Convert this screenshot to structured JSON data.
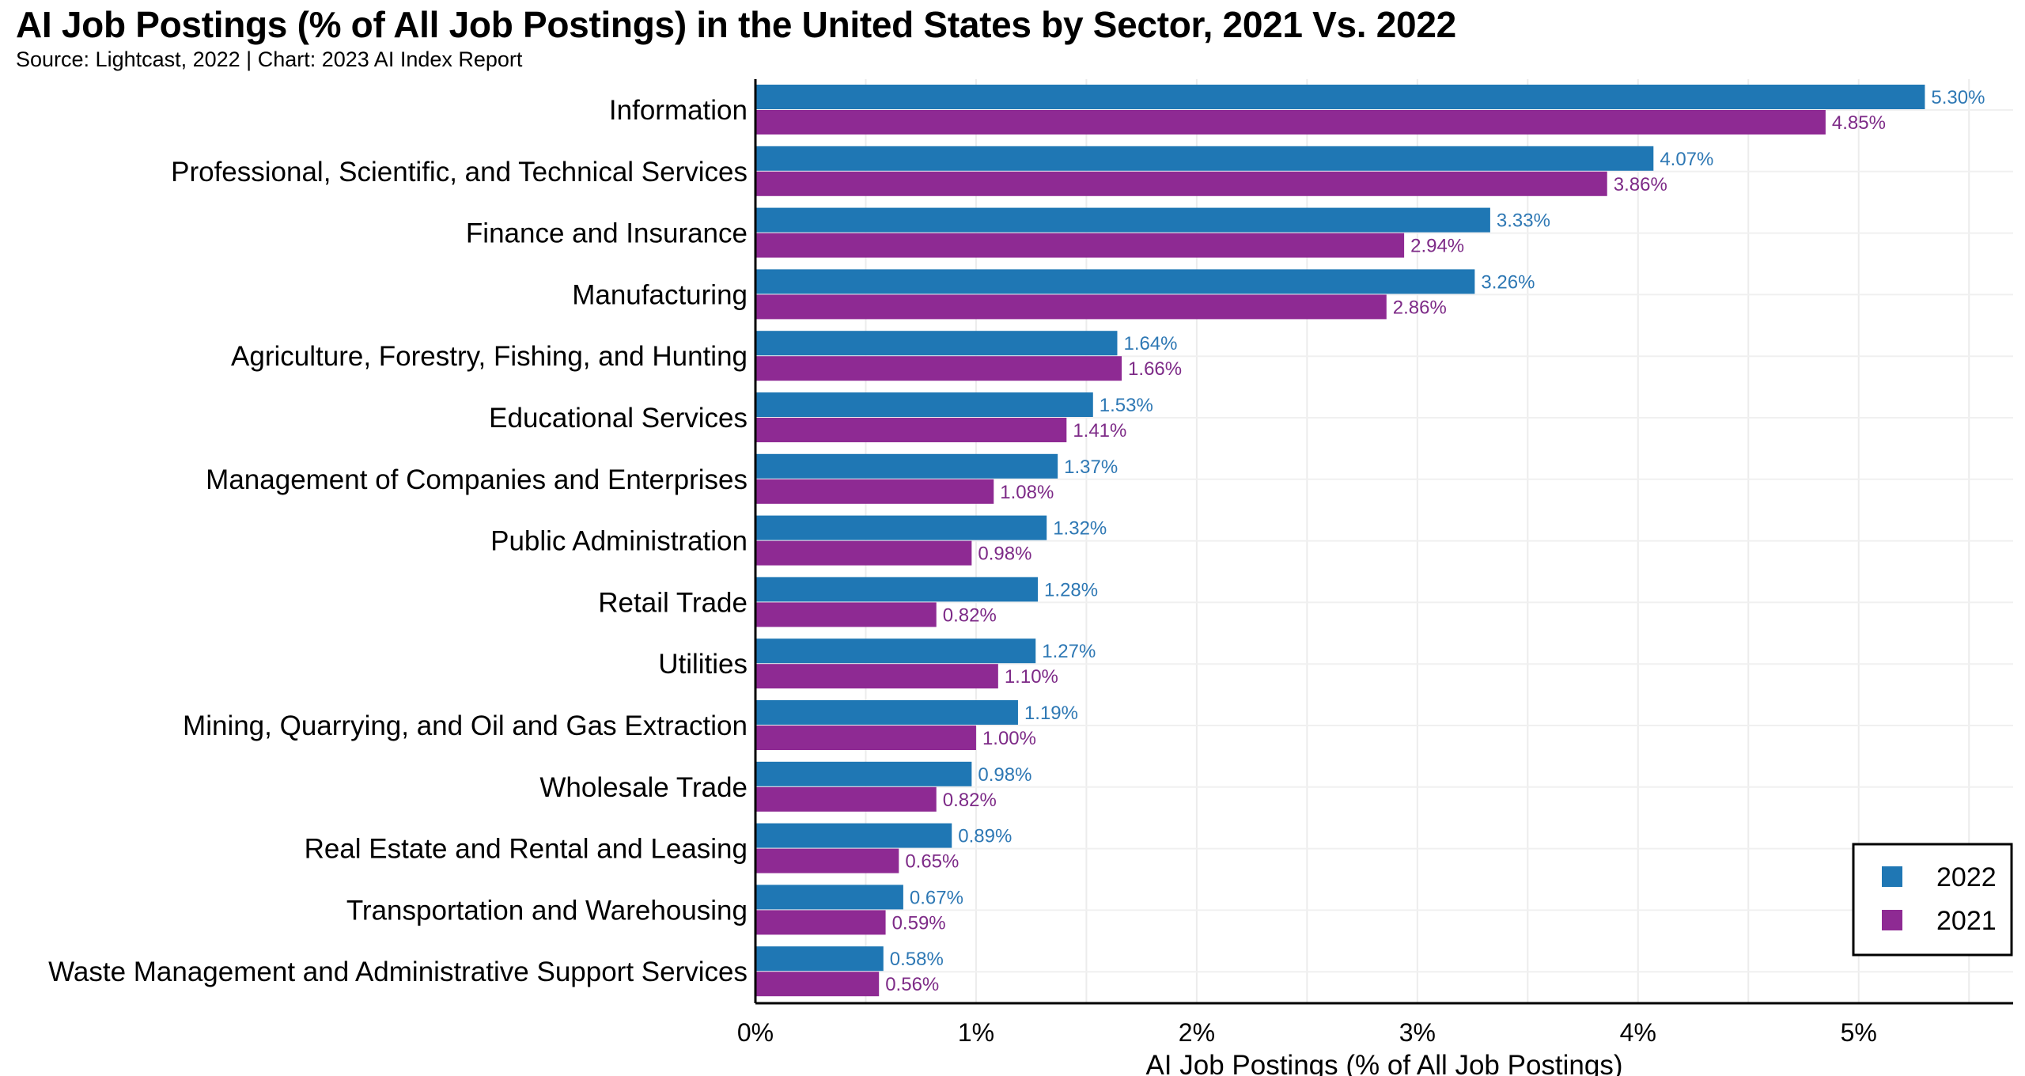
{
  "title": "AI Job Postings (% of All Job Postings) in the United States by Sector, 2021 Vs. 2022",
  "subtitle": "Source: Lightcast, 2022 | Chart: 2023 AI Index Report",
  "chart_data": {
    "type": "bar",
    "orientation": "horizontal",
    "categories": [
      "Information",
      "Professional, Scientific, and Technical Services",
      "Finance and Insurance",
      "Manufacturing",
      "Agriculture, Forestry, Fishing, and Hunting",
      "Educational Services",
      "Management of Companies and Enterprises",
      "Public Administration",
      "Retail Trade",
      "Utilities",
      "Mining, Quarrying, and Oil and Gas Extraction",
      "Wholesale Trade",
      "Real Estate and Rental and Leasing",
      "Transportation and Warehousing",
      "Waste Management and Administrative Support Services"
    ],
    "series": [
      {
        "name": "2022",
        "color": "#1f77b4",
        "label_color": "#2e78b4",
        "values": [
          5.3,
          4.07,
          3.33,
          3.26,
          1.64,
          1.53,
          1.37,
          1.32,
          1.28,
          1.27,
          1.19,
          0.98,
          0.89,
          0.67,
          0.58
        ],
        "labels": [
          "5.30%",
          "4.07%",
          "3.33%",
          "3.26%",
          "1.64%",
          "1.53%",
          "1.37%",
          "1.32%",
          "1.28%",
          "1.27%",
          "1.19%",
          "0.98%",
          "0.89%",
          "0.67%",
          "0.58%"
        ]
      },
      {
        "name": "2021",
        "color": "#8e2a93",
        "label_color": "#7d2a87",
        "values": [
          4.85,
          3.86,
          2.94,
          2.86,
          1.66,
          1.41,
          1.08,
          0.98,
          0.82,
          1.1,
          1.0,
          0.82,
          0.65,
          0.59,
          0.56
        ],
        "labels": [
          "4.85%",
          "3.86%",
          "2.94%",
          "2.86%",
          "1.66%",
          "1.41%",
          "1.08%",
          "0.98%",
          "0.82%",
          "1.10%",
          "1.00%",
          "0.82%",
          "0.65%",
          "0.59%",
          "0.56%"
        ]
      }
    ],
    "xlabel": "AI Job Postings (% of All Job Postings)",
    "ylabel": "",
    "xlim": [
      0,
      5.7
    ],
    "xticks": [
      0,
      1,
      2,
      3,
      4,
      5
    ],
    "xtick_labels": [
      "0%",
      "1%",
      "2%",
      "3%",
      "4%",
      "5%"
    ],
    "grid": true,
    "legend_position": "bottom-right"
  }
}
